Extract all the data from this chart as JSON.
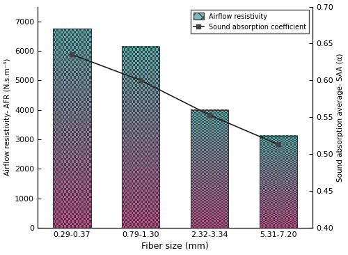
{
  "categories": [
    "0.29-0.37",
    "0.79-1.30",
    "2.32-3.34",
    "5.31-7.20"
  ],
  "afr_values": [
    6750,
    6150,
    4000,
    3130
  ],
  "saa_values": [
    0.635,
    0.6,
    0.553,
    0.513
  ],
  "bar_color_top": "#5aadad",
  "bar_color_bottom": "#c0508a",
  "bar_dot_color": "#2a2a2a",
  "xlabel": "Fiber size (mm)",
  "ylabel_left": "Airflow resistivity- AFR (N.s.m⁻³)",
  "ylabel_right": "Sound absorption average- SAA (α)",
  "ylim_left": [
    0,
    7500
  ],
  "ylim_right": [
    0.4,
    0.7
  ],
  "yticks_left": [
    0,
    1000,
    2000,
    3000,
    4000,
    5000,
    6000,
    7000
  ],
  "yticks_right": [
    0.4,
    0.45,
    0.5,
    0.55,
    0.6,
    0.65,
    0.7
  ],
  "legend_airflow": "Airflow resistivity",
  "legend_saa": "Sound absorption coefficient",
  "line_color": "#222222",
  "marker_color": "#444444",
  "background_color": "#ffffff",
  "bar_width": 0.55,
  "figsize": [
    5.0,
    3.66
  ],
  "dpi": 100
}
